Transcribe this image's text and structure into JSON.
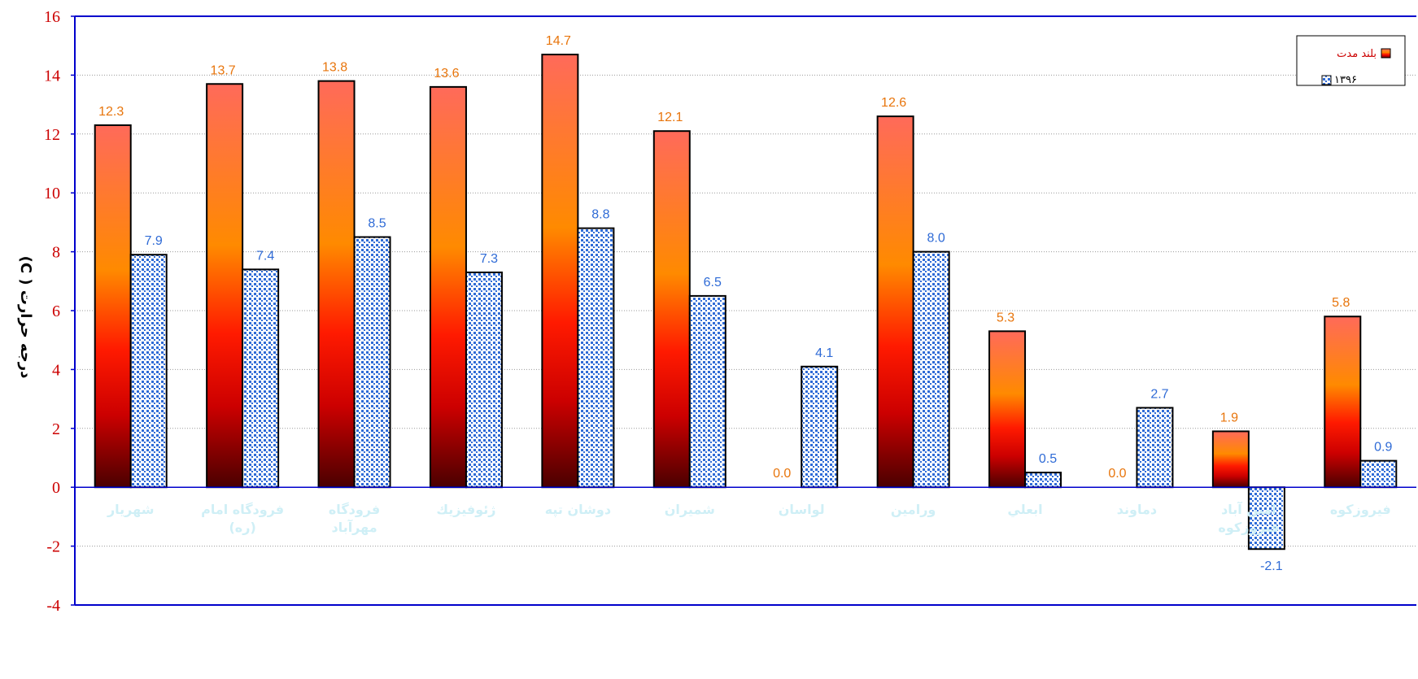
{
  "chart_data": {
    "type": "bar",
    "title": "",
    "xlabel": "",
    "ylabel": "درجه حرارت ( C)",
    "ylim": [
      -4,
      16
    ],
    "yticks": [
      -4,
      -2,
      0,
      2,
      4,
      6,
      8,
      10,
      12,
      14,
      16
    ],
    "grid": true,
    "legend_position": "top-right",
    "categories": [
      "شهريار",
      "فرودگاه امام (ره)",
      "فرودگاه مهرآباد",
      "ژئوفيزيك",
      "دوشان تپه",
      "شميران",
      "لواسان",
      "ورامين",
      "ابعلي",
      "دماوند",
      "امين آباد فيروزكوه",
      "فيروزكوه"
    ],
    "series": [
      {
        "name": "بلند مدت",
        "values": [
          12.3,
          13.7,
          13.8,
          13.6,
          14.7,
          12.1,
          0.0,
          12.6,
          5.3,
          0.0,
          1.9,
          5.8
        ],
        "label_color": "#e8750c"
      },
      {
        "name": "۱۳۹۶",
        "values": [
          7.9,
          7.4,
          8.5,
          7.3,
          8.8,
          6.5,
          4.1,
          8.0,
          0.5,
          2.7,
          -2.1,
          0.9
        ],
        "label_color": "#2f6bd6"
      }
    ],
    "colors": {
      "axis": "#0000cc",
      "tick_label": "#cc0000",
      "category_label": "#cfeff6",
      "bar_gradient": [
        "#ff6a5a",
        "#ff8a00",
        "#ff1a00",
        "#cc0000",
        "#4a0000"
      ],
      "pattern_bg": "#ffffff",
      "pattern_fg": "#2f6bd6"
    }
  }
}
